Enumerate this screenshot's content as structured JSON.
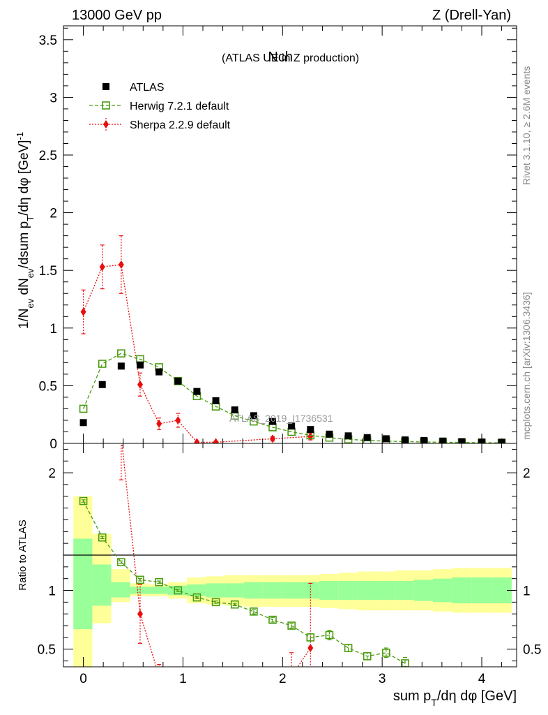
{
  "header": {
    "left": "13000 GeV pp",
    "right": "Z (Drell-Yan)"
  },
  "side_text": {
    "rivet": "Rivet 3.1.10, ≥ 2.6M events",
    "mcplots": "mcplots.cern.ch [arXiv:1306.3436]"
  },
  "watermark": "ATLAS_2019_I1736531",
  "chart_data": [
    {
      "type": "scatter",
      "title": "Nch",
      "subtitle": "(ATLAS UE in Z production)",
      "ylabel": "1/N_ev dN_ev/dsum p_T/dη dφ [GeV]^-1",
      "xlim": [
        -0.2,
        4.35
      ],
      "ylim": [
        0,
        3.62
      ],
      "yticks": [
        0,
        0.5,
        1,
        1.5,
        2,
        2.5,
        3,
        3.5
      ],
      "ytick_labels": [
        "0",
        "0.5",
        "1",
        "1.5",
        "2",
        "2.5",
        "3",
        "3.5"
      ],
      "series": [
        {
          "name": "ATLAS",
          "color": "#000000",
          "marker": "filled-square",
          "x": [
            0,
            0.19,
            0.38,
            0.57,
            0.76,
            0.95,
            1.14,
            1.33,
            1.52,
            1.71,
            1.9,
            2.09,
            2.28,
            2.47,
            2.66,
            2.85,
            3.04,
            3.23,
            3.42,
            3.61,
            3.8,
            4.0,
            4.2
          ],
          "y": [
            0.18,
            0.51,
            0.67,
            0.68,
            0.62,
            0.54,
            0.45,
            0.37,
            0.29,
            0.24,
            0.19,
            0.15,
            0.12,
            0.08,
            0.065,
            0.05,
            0.04,
            0.03,
            0.025,
            0.02,
            0.015,
            0.012,
            0.01
          ]
        },
        {
          "name": "Herwig 7.2.1 default",
          "color": "#4a9b0f",
          "marker": "open-square",
          "line": "dashed",
          "x": [
            0,
            0.19,
            0.38,
            0.57,
            0.76,
            0.95,
            1.14,
            1.33,
            1.52,
            1.71,
            1.9,
            2.09,
            2.28,
            2.47,
            2.66,
            2.85,
            3.04,
            3.23,
            3.42,
            3.61,
            3.8,
            4.0,
            4.2
          ],
          "y": [
            0.3,
            0.69,
            0.78,
            0.73,
            0.66,
            0.54,
            0.41,
            0.32,
            0.24,
            0.19,
            0.14,
            0.1,
            0.07,
            0.05,
            0.035,
            0.025,
            0.02,
            0.015,
            0.012,
            0.01,
            0.008,
            0.006,
            0.005
          ]
        },
        {
          "name": "Sherpa 2.2.9 default",
          "color": "#e80e0e",
          "marker": "diamond",
          "line": "dotted",
          "x": [
            0,
            0.19,
            0.38,
            0.57,
            0.76,
            0.95,
            1.14,
            1.33,
            1.9,
            2.28
          ],
          "y": [
            1.14,
            1.53,
            1.55,
            0.51,
            0.17,
            0.2,
            0.01,
            0.01,
            0.04,
            0.06
          ],
          "err": [
            0.19,
            0.19,
            0.25,
            0.1,
            0.05,
            0.06,
            0.01,
            0.01,
            0.02,
            0.03
          ]
        }
      ]
    },
    {
      "type": "scatter",
      "ylabel": "Ratio to ATLAS",
      "xlabel": "sum p_T/dη dφ [GeV]",
      "xlim": [
        -0.2,
        4.35
      ],
      "ylim": [
        0.35,
        2.25
      ],
      "xticks": [
        0,
        1,
        2,
        3,
        4
      ],
      "xtick_labels": [
        "0",
        "1",
        "2",
        "3",
        "4"
      ],
      "yticks": [
        0.5,
        1,
        2
      ],
      "ytick_labels": [
        "0.5",
        "1",
        "2"
      ],
      "bands": {
        "edges": [
          -0.1,
          0.09,
          0.28,
          0.47,
          0.66,
          0.85,
          1.04,
          1.23,
          1.42,
          1.61,
          1.8,
          1.99,
          2.18,
          2.37,
          2.56,
          2.75,
          2.94,
          3.13,
          3.32,
          3.51,
          3.7,
          3.9,
          4.1,
          4.3
        ],
        "stat_lo": [
          0.67,
          0.87,
          0.94,
          0.97,
          0.97,
          0.96,
          0.95,
          0.94,
          0.94,
          0.93,
          0.93,
          0.93,
          0.93,
          0.92,
          0.92,
          0.92,
          0.92,
          0.92,
          0.91,
          0.9,
          0.89,
          0.89,
          0.89
        ],
        "stat_hi": [
          1.44,
          1.22,
          1.07,
          1.03,
          1.03,
          1.04,
          1.05,
          1.06,
          1.06,
          1.07,
          1.07,
          1.07,
          1.07,
          1.08,
          1.08,
          1.08,
          1.08,
          1.08,
          1.09,
          1.1,
          1.11,
          1.11,
          1.11
        ],
        "sys_lo": [
          0.35,
          0.72,
          0.9,
          0.95,
          0.95,
          0.93,
          0.89,
          0.88,
          0.87,
          0.86,
          0.86,
          0.86,
          0.86,
          0.85,
          0.84,
          0.83,
          0.83,
          0.83,
          0.83,
          0.82,
          0.81,
          0.81,
          0.81
        ],
        "sys_hi": [
          1.8,
          1.48,
          1.18,
          1.06,
          1.05,
          1.07,
          1.11,
          1.12,
          1.13,
          1.13,
          1.13,
          1.13,
          1.13,
          1.14,
          1.15,
          1.16,
          1.16,
          1.17,
          1.17,
          1.18,
          1.19,
          1.19,
          1.19
        ]
      },
      "series": [
        {
          "name": "Herwig 7.2.1 default",
          "color": "#4a9b0f",
          "marker": "open-square",
          "line": "dashed",
          "x": [
            0,
            0.19,
            0.38,
            0.57,
            0.76,
            0.95,
            1.14,
            1.33,
            1.52,
            1.71,
            1.9,
            2.09,
            2.28,
            2.47,
            2.66,
            2.85,
            3.04,
            3.23
          ],
          "y": [
            1.76,
            1.45,
            1.24,
            1.09,
            1.07,
            1.0,
            0.94,
            0.9,
            0.88,
            0.82,
            0.75,
            0.7,
            0.6,
            0.62,
            0.51,
            0.44,
            0.47,
            0.38
          ],
          "err": [
            0.01,
            0.01,
            0.01,
            0.01,
            0.01,
            0.01,
            0.01,
            0.01,
            0.01,
            0.02,
            0.02,
            0.02,
            0.03,
            0.04,
            0.03,
            0.03,
            0.04,
            0.05
          ]
        },
        {
          "name": "Sherpa 2.2.9 default",
          "color": "#e80e0e",
          "marker": "diamond",
          "line": "dotted",
          "x": [
            0.38,
            0.57,
            0.76,
            2.09,
            2.28
          ],
          "y": [
            2.31,
            0.8,
            0.27,
            0.27,
            0.51
          ],
          "err": [
            0.37,
            0.25,
            0.1,
            0.2,
            0.55
          ]
        }
      ]
    }
  ]
}
